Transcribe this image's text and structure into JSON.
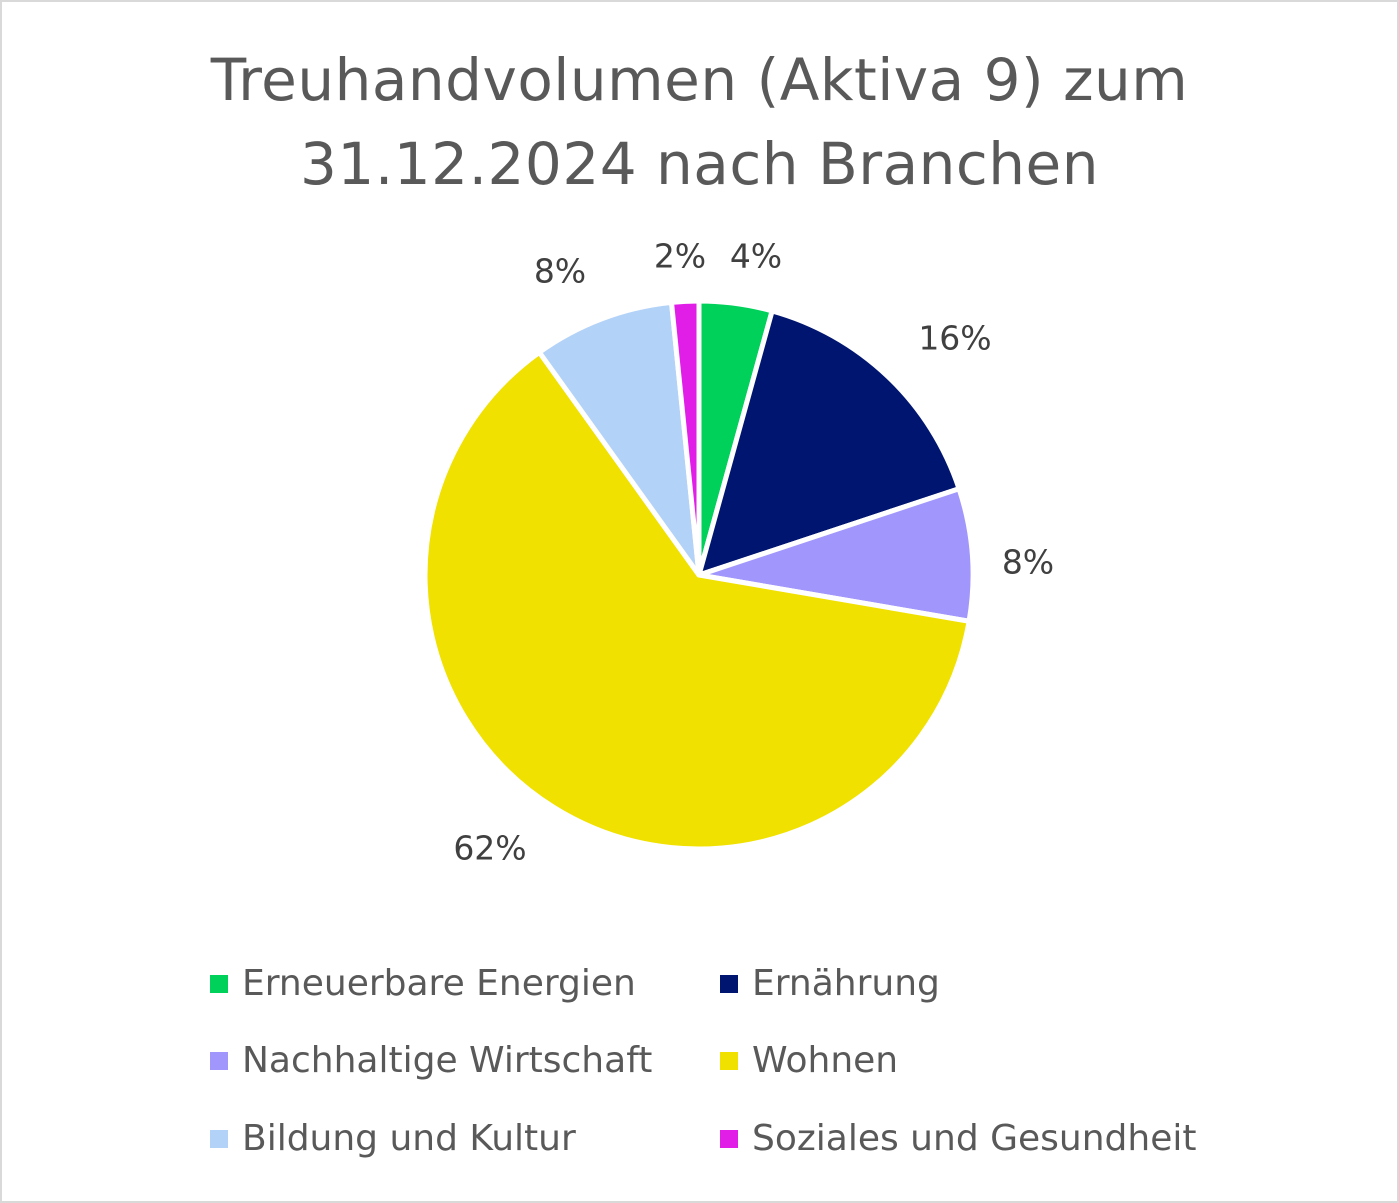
{
  "chart_data": {
    "type": "pie",
    "title_lines": [
      "Treuhandvolumen (Aktiva 9) zum",
      "31.12.2024 nach Branchen"
    ],
    "slices": [
      {
        "name": "Erneuerbare Energien",
        "value": 4.3,
        "label": "4%",
        "color": "#00d15b"
      },
      {
        "name": "Ernährung",
        "value": 15.6,
        "label": "16%",
        "color": "#001570"
      },
      {
        "name": "Nachhaltige Wirtschaft",
        "value": 7.8,
        "label": "8%",
        "color": "#a196fb"
      },
      {
        "name": "Wohnen",
        "value": 62.4,
        "label": "62%",
        "color": "#f0e100"
      },
      {
        "name": "Bildung und Kultur",
        "value": 8.3,
        "label": "8%",
        "color": "#b3d2f8"
      },
      {
        "name": "Soziales und Gesundheit",
        "value": 1.6,
        "label": "2%",
        "color": "#e01ee8"
      }
    ],
    "legend_position": "bottom"
  }
}
